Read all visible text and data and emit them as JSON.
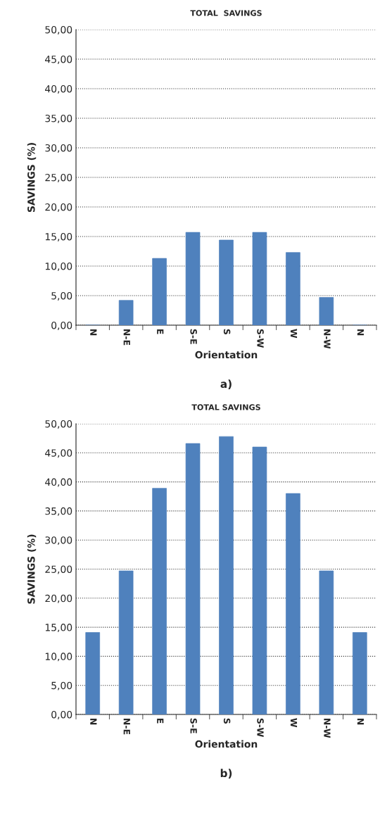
{
  "chart_data": [
    {
      "type": "bar",
      "title": "TOTAL  SAVINGS",
      "xlabel": "Orientation",
      "ylabel": "SAVINGS (%)",
      "annotations": [
        "a)"
      ],
      "categories": [
        "N",
        "N-E",
        "E",
        "S-E",
        "S",
        "S-W",
        "W",
        "N-W",
        "N"
      ],
      "values": [
        0,
        4.2,
        11.3,
        15.7,
        14.4,
        15.7,
        12.3,
        4.7,
        0
      ],
      "color": "#4f81bd",
      "ylim": [
        0,
        50
      ],
      "yticks": [
        {
          "value": 0,
          "label": "0,00"
        },
        {
          "value": 5,
          "label": "5,00"
        },
        {
          "value": 10,
          "label": "10,00"
        },
        {
          "value": 15,
          "label": "15,00"
        },
        {
          "value": 20,
          "label": "20,00"
        },
        {
          "value": 25,
          "label": "25,00"
        },
        {
          "value": 30,
          "label": "30,00"
        },
        {
          "value": 35,
          "label": "35,00"
        },
        {
          "value": 40,
          "label": "40,00"
        },
        {
          "value": 45,
          "label": "45,00"
        },
        {
          "value": 50,
          "label": "50,00"
        }
      ],
      "grid": "y",
      "line_style": "dotted"
    },
    {
      "type": "bar",
      "title": "TOTAL SAVINGS",
      "xlabel": "Orientation",
      "ylabel": "SAVINGS (%)",
      "annotations": [
        "b)"
      ],
      "categories": [
        "N",
        "N-E",
        "E",
        "S-E",
        "S",
        "S-W",
        "W",
        "N-W",
        "N"
      ],
      "values": [
        14.1,
        24.7,
        38.9,
        46.6,
        47.8,
        46.0,
        38.0,
        24.7,
        14.1
      ],
      "color": "#4f81bd",
      "ylim": [
        0,
        50
      ],
      "yticks": [
        {
          "value": 0,
          "label": "0,00"
        },
        {
          "value": 5,
          "label": "5,00"
        },
        {
          "value": 10,
          "label": "10,00"
        },
        {
          "value": 15,
          "label": "15,00"
        },
        {
          "value": 20,
          "label": "20,00"
        },
        {
          "value": 25,
          "label": "25,00"
        },
        {
          "value": 30,
          "label": "30,00"
        },
        {
          "value": 35,
          "label": "35,00"
        },
        {
          "value": 40,
          "label": "40,00"
        },
        {
          "value": 45,
          "label": "45,00"
        },
        {
          "value": 50,
          "label": "50,00"
        }
      ],
      "grid": "y",
      "line_style": "dotted"
    }
  ]
}
